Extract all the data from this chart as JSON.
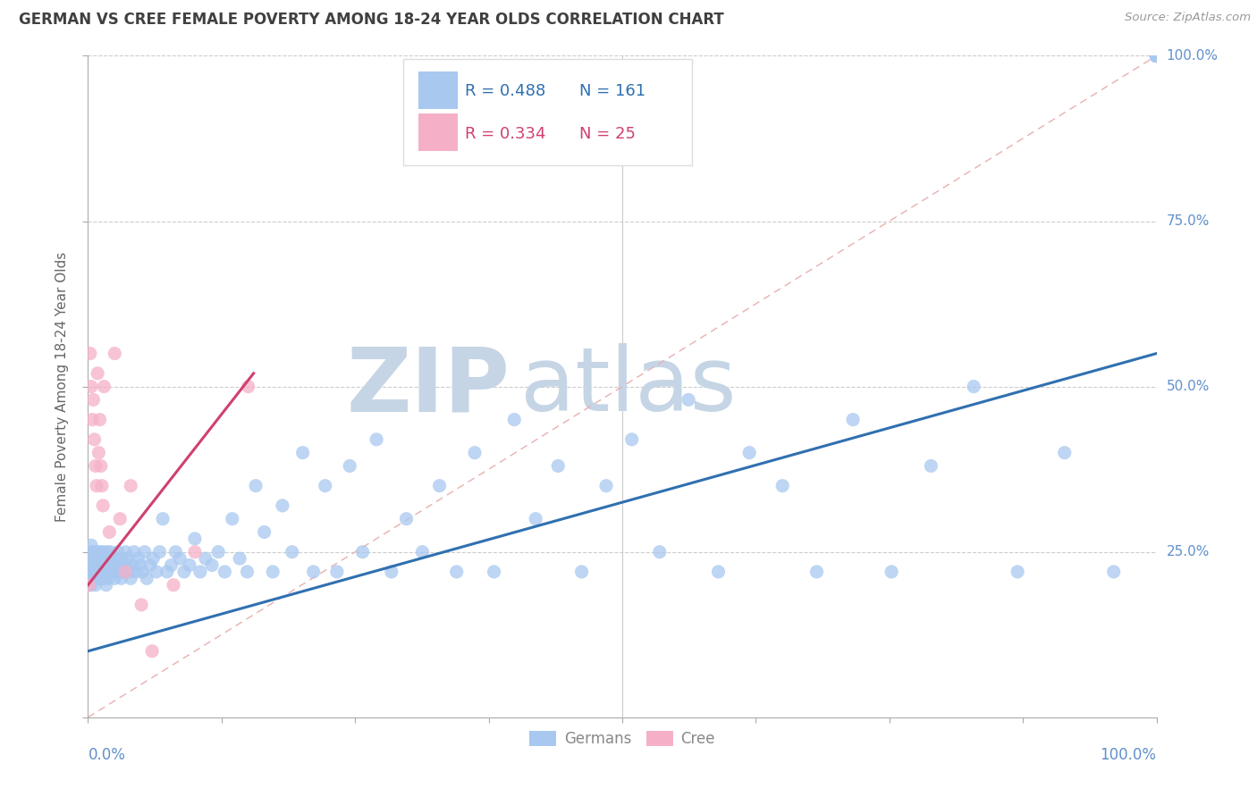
{
  "title": "GERMAN VS CREE FEMALE POVERTY AMONG 18-24 YEAR OLDS CORRELATION CHART",
  "source": "Source: ZipAtlas.com",
  "ylabel": "Female Poverty Among 18-24 Year Olds",
  "watermark_zip": "ZIP",
  "watermark_atlas": "atlas",
  "watermark_color_zip": "#c5d5e5",
  "watermark_color_atlas": "#c5d5e5",
  "german_color": "#a8c8f0",
  "cree_color": "#f5b0c8",
  "trend_german_color": "#3070b0",
  "trend_cree_color": "#d04070",
  "diag_color": "#e8b0b0",
  "background_color": "#ffffff",
  "grid_color": "#cccccc",
  "axis_label_color": "#6090cc",
  "title_color": "#404040",
  "german_trend_x0": 0.0,
  "german_trend_y0": 0.1,
  "german_trend_x1": 1.0,
  "german_trend_y1": 0.55,
  "cree_trend_x0": 0.0,
  "cree_trend_y0": 0.2,
  "cree_trend_x1": 0.155,
  "cree_trend_y1": 0.52,
  "legend_R_german": "R = 0.488",
  "legend_N_german": "N = 161",
  "legend_R_cree": "R = 0.334",
  "legend_N_cree": "N = 25",
  "german_x": [
    0.001,
    0.002,
    0.003,
    0.003,
    0.004,
    0.004,
    0.004,
    0.005,
    0.005,
    0.005,
    0.006,
    0.006,
    0.006,
    0.007,
    0.007,
    0.007,
    0.008,
    0.008,
    0.008,
    0.009,
    0.009,
    0.009,
    0.01,
    0.01,
    0.01,
    0.01,
    0.011,
    0.011,
    0.012,
    0.012,
    0.013,
    0.013,
    0.014,
    0.014,
    0.015,
    0.015,
    0.016,
    0.016,
    0.017,
    0.017,
    0.018,
    0.018,
    0.019,
    0.019,
    0.02,
    0.02,
    0.021,
    0.022,
    0.023,
    0.024,
    0.025,
    0.026,
    0.027,
    0.028,
    0.029,
    0.03,
    0.031,
    0.032,
    0.033,
    0.034,
    0.035,
    0.036,
    0.037,
    0.038,
    0.04,
    0.041,
    0.043,
    0.045,
    0.047,
    0.049,
    0.051,
    0.053,
    0.055,
    0.058,
    0.061,
    0.064,
    0.067,
    0.07,
    0.074,
    0.078,
    0.082,
    0.086,
    0.09,
    0.095,
    0.1,
    0.105,
    0.11,
    0.116,
    0.122,
    0.128,
    0.135,
    0.142,
    0.149,
    0.157,
    0.165,
    0.173,
    0.182,
    0.191,
    0.201,
    0.211,
    0.222,
    0.233,
    0.245,
    0.257,
    0.27,
    0.284,
    0.298,
    0.313,
    0.329,
    0.345,
    0.362,
    0.38,
    0.399,
    0.419,
    0.44,
    0.462,
    0.485,
    0.509,
    0.535,
    0.562,
    0.59,
    0.619,
    0.65,
    0.682,
    0.716,
    0.752,
    0.789,
    0.829,
    0.87,
    0.914,
    0.96,
    1.0,
    1.0,
    1.0,
    1.0,
    1.0,
    1.0,
    1.0,
    1.0,
    1.0,
    1.0,
    1.0,
    1.0,
    1.0,
    1.0,
    1.0,
    1.0,
    1.0,
    1.0,
    1.0,
    1.0,
    1.0,
    1.0,
    1.0,
    1.0,
    1.0,
    1.0,
    1.0,
    1.0,
    1.0,
    1.0
  ],
  "german_y": [
    0.22,
    0.24,
    0.2,
    0.26,
    0.22,
    0.25,
    0.21,
    0.23,
    0.22,
    0.24,
    0.21,
    0.23,
    0.25,
    0.22,
    0.2,
    0.24,
    0.23,
    0.22,
    0.25,
    0.21,
    0.24,
    0.22,
    0.23,
    0.21,
    0.24,
    0.22,
    0.25,
    0.23,
    0.22,
    0.21,
    0.24,
    0.23,
    0.22,
    0.25,
    0.21,
    0.23,
    0.22,
    0.24,
    0.2,
    0.23,
    0.25,
    0.22,
    0.24,
    0.21,
    0.23,
    0.22,
    0.25,
    0.24,
    0.22,
    0.23,
    0.21,
    0.24,
    0.22,
    0.25,
    0.23,
    0.22,
    0.21,
    0.24,
    0.23,
    0.22,
    0.25,
    0.23,
    0.24,
    0.22,
    0.21,
    0.23,
    0.25,
    0.22,
    0.24,
    0.23,
    0.22,
    0.25,
    0.21,
    0.23,
    0.24,
    0.22,
    0.25,
    0.3,
    0.22,
    0.23,
    0.25,
    0.24,
    0.22,
    0.23,
    0.27,
    0.22,
    0.24,
    0.23,
    0.25,
    0.22,
    0.3,
    0.24,
    0.22,
    0.35,
    0.28,
    0.22,
    0.32,
    0.25,
    0.4,
    0.22,
    0.35,
    0.22,
    0.38,
    0.25,
    0.42,
    0.22,
    0.3,
    0.25,
    0.35,
    0.22,
    0.4,
    0.22,
    0.45,
    0.3,
    0.38,
    0.22,
    0.35,
    0.42,
    0.25,
    0.48,
    0.22,
    0.4,
    0.35,
    0.22,
    0.45,
    0.22,
    0.38,
    0.5,
    0.22,
    0.4,
    0.22,
    1.0,
    1.0,
    1.0,
    1.0,
    1.0,
    1.0,
    1.0,
    1.0,
    1.0,
    1.0,
    1.0,
    1.0,
    1.0,
    1.0,
    1.0,
    1.0,
    1.0,
    1.0,
    1.0,
    1.0,
    1.0,
    1.0,
    1.0,
    1.0,
    1.0,
    1.0,
    1.0,
    1.0,
    1.0,
    1.0
  ],
  "cree_x": [
    0.001,
    0.002,
    0.003,
    0.004,
    0.005,
    0.006,
    0.007,
    0.008,
    0.009,
    0.01,
    0.011,
    0.012,
    0.013,
    0.014,
    0.015,
    0.02,
    0.025,
    0.03,
    0.035,
    0.04,
    0.05,
    0.06,
    0.08,
    0.1,
    0.15
  ],
  "cree_y": [
    0.2,
    0.55,
    0.5,
    0.45,
    0.48,
    0.42,
    0.38,
    0.35,
    0.52,
    0.4,
    0.45,
    0.38,
    0.35,
    0.32,
    0.5,
    0.28,
    0.55,
    0.3,
    0.22,
    0.35,
    0.17,
    0.1,
    0.2,
    0.25,
    0.5
  ],
  "xlim": [
    0.0,
    1.0
  ],
  "ylim": [
    0.0,
    1.0
  ]
}
